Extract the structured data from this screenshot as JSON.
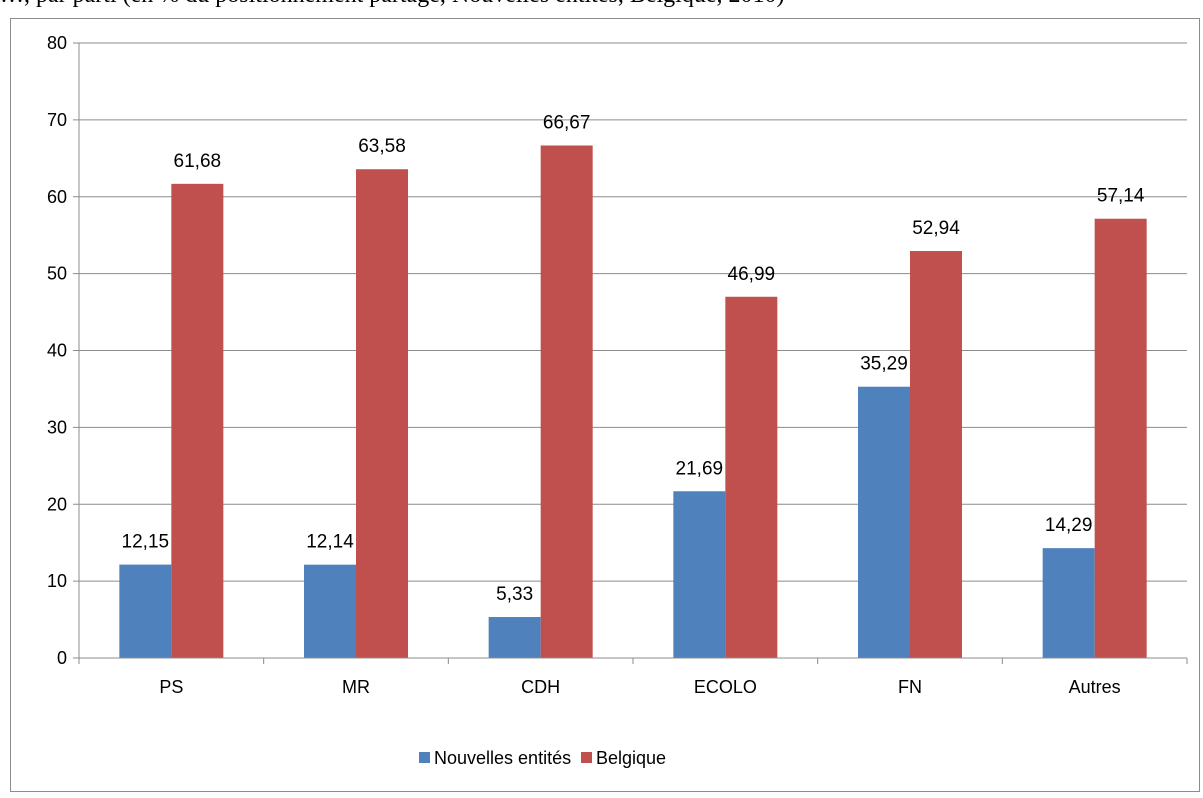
{
  "caption_fragment": "…, par parti (en % du positionnement partagé, Nouvelles entités, Belgique, 2010)",
  "chart_data": {
    "type": "bar",
    "title": "",
    "xlabel": "",
    "ylabel": "",
    "ylim": [
      0,
      80
    ],
    "yticks": [
      0,
      10,
      20,
      30,
      40,
      50,
      60,
      70,
      80
    ],
    "grid": true,
    "legend_position": "bottom",
    "categories": [
      "PS",
      "MR",
      "CDH",
      "ECOLO",
      "FN",
      "Autres"
    ],
    "series": [
      {
        "name": "Nouvelles entités",
        "color": "#4f81bd",
        "values": [
          12.15,
          12.14,
          5.33,
          21.69,
          35.29,
          14.29
        ],
        "labels": [
          "12,15",
          "12,14",
          "5,33",
          "21,69",
          "35,29",
          "14,29"
        ]
      },
      {
        "name": "Belgique",
        "color": "#c0504d",
        "values": [
          61.68,
          63.58,
          66.67,
          46.99,
          52.94,
          57.14
        ],
        "labels": [
          "61,68",
          "63,58",
          "66,67",
          "46,99",
          "52,94",
          "57,14"
        ]
      }
    ]
  }
}
